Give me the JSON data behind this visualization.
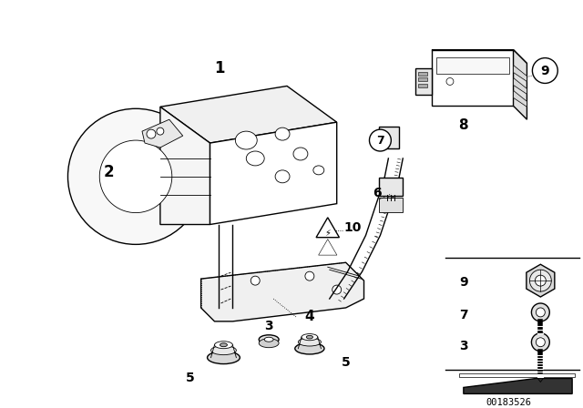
{
  "background_color": "#ffffff",
  "image_id": "00183526",
  "lc": "#000000",
  "fig_w": 6.4,
  "fig_h": 4.48,
  "dpi": 100
}
